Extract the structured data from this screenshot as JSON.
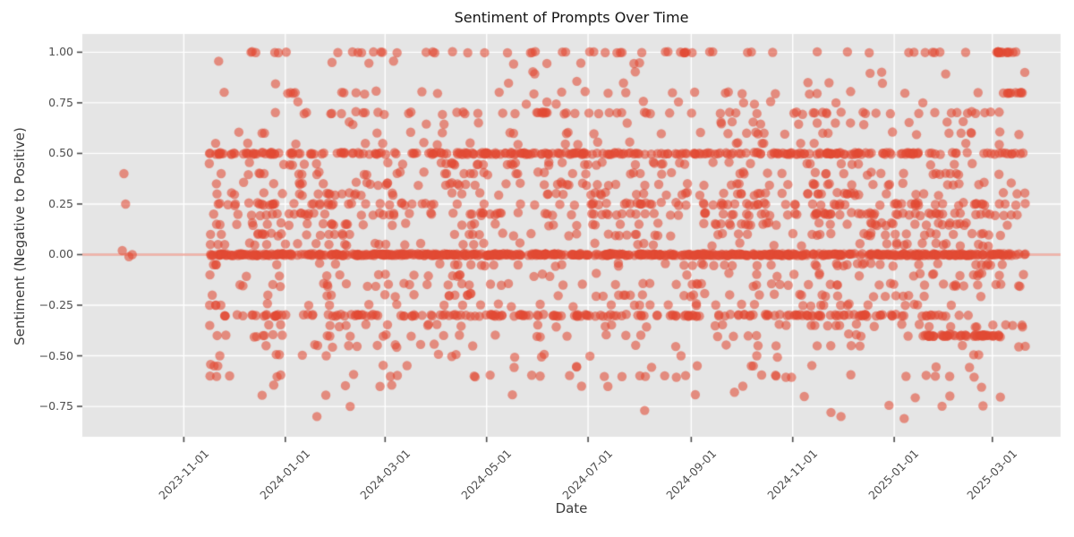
{
  "colors": {
    "figure_bg": "#ffffff",
    "plot_bg": "#e5e5e5",
    "grid": "#ffffff",
    "point": "#e24a33",
    "tick_mark": "#4a4a4a",
    "tick_label": "#4f4f4f",
    "title_color": "#141414"
  },
  "chart_data": {
    "type": "scatter",
    "title": "Sentiment of Prompts Over Time",
    "xlabel": "Date",
    "ylabel": "Sentiment (Negative to Positive)",
    "grid": true,
    "ylim": [
      -0.9,
      1.09
    ],
    "xlim_days": [
      -61,
      527
    ],
    "day_zero_date": "2023-11-01",
    "x_ticks": [
      {
        "label": "2023-11-01",
        "day": 0
      },
      {
        "label": "2024-01-01",
        "day": 61
      },
      {
        "label": "2024-03-01",
        "day": 121
      },
      {
        "label": "2024-05-01",
        "day": 182
      },
      {
        "label": "2024-07-01",
        "day": 243
      },
      {
        "label": "2024-09-01",
        "day": 305
      },
      {
        "label": "2024-11-01",
        "day": 366
      },
      {
        "label": "2025-01-01",
        "day": 427
      },
      {
        "label": "2025-03-01",
        "day": 486
      }
    ],
    "y_ticks": [
      {
        "label": "1.00",
        "value": 1.0
      },
      {
        "label": "0.75",
        "value": 0.75
      },
      {
        "label": "0.50",
        "value": 0.5
      },
      {
        "label": "0.25",
        "value": 0.25
      },
      {
        "label": "0.00",
        "value": 0.0
      },
      {
        "label": "−0.25",
        "value": -0.25
      },
      {
        "label": "−0.50",
        "value": -0.5
      },
      {
        "label": "−0.75",
        "value": -0.75
      }
    ],
    "point_alpha": 0.58,
    "point_radius": 5.2,
    "zero_line": {
      "value": 0,
      "alpha": 0.42,
      "width": 2.5
    },
    "seed": 1337,
    "notable_points": [
      [
        -36,
        0.4
      ],
      [
        -35,
        0.25
      ],
      [
        -37,
        0.02
      ],
      [
        -31,
        0.0
      ],
      [
        -33,
        -0.01
      ],
      [
        80,
        -0.8
      ],
      [
        100,
        -0.75
      ],
      [
        277,
        -0.77
      ],
      [
        331,
        -0.68
      ],
      [
        336,
        -0.65
      ],
      [
        389,
        -0.78
      ],
      [
        395,
        -0.8
      ],
      [
        433,
        -0.81
      ]
    ],
    "runs": [
      {
        "value": 0.0,
        "from": 15,
        "to": 506,
        "count": 650,
        "jitter": 0.005
      },
      {
        "value": 0.5,
        "from": 15,
        "to": 115,
        "count": 55,
        "jitter": 0.005
      },
      {
        "value": 0.5,
        "from": 115,
        "to": 506,
        "count": 235,
        "jitter": 0.005
      },
      {
        "value": -0.3,
        "from": 18,
        "to": 465,
        "count": 190,
        "jitter": 0.005
      },
      {
        "value": -0.4,
        "from": 443,
        "to": 490,
        "count": 48,
        "jitter": 0.004
      },
      {
        "value": 1.0,
        "from": 17,
        "to": 504,
        "count": 58,
        "jitter": 0.003
      },
      {
        "value": 1.0,
        "from": 488,
        "to": 503,
        "count": 13,
        "jitter": 0.003
      },
      {
        "value": 0.8,
        "from": 20,
        "to": 485,
        "count": 15,
        "jitter": 0.004
      },
      {
        "value": 0.8,
        "from": 489,
        "to": 504,
        "count": 10,
        "jitter": 0.003
      },
      {
        "value": 0.7,
        "from": 45,
        "to": 492,
        "count": 45,
        "jitter": 0.005
      },
      {
        "value": 0.25,
        "from": 20,
        "to": 500,
        "count": 45,
        "jitter": 0.006
      },
      {
        "value": 0.2,
        "from": 20,
        "to": 500,
        "count": 40,
        "jitter": 0.006
      },
      {
        "value": -0.6,
        "from": 18,
        "to": 472,
        "count": 16,
        "jitter": 0.004
      }
    ],
    "columns": [
      {
        "day": 19,
        "spread": 4,
        "count": 28,
        "vmin": -0.62,
        "vmax": 0.55
      },
      {
        "day": 50,
        "spread": 6,
        "count": 22,
        "vmin": -0.45,
        "vmax": 0.72
      },
      {
        "day": 95,
        "spread": 8,
        "count": 18,
        "vmin": -0.5,
        "vmax": 0.35
      },
      {
        "day": 165,
        "spread": 10,
        "count": 30,
        "vmin": -0.35,
        "vmax": 0.55
      },
      {
        "day": 268,
        "spread": 8,
        "count": 18,
        "vmin": -0.35,
        "vmax": 0.75
      },
      {
        "day": 340,
        "spread": 9,
        "count": 26,
        "vmin": -0.7,
        "vmax": 0.85
      },
      {
        "day": 388,
        "spread": 11,
        "count": 40,
        "vmin": -0.5,
        "vmax": 0.75
      },
      {
        "day": 470,
        "spread": 11,
        "count": 22,
        "vmin": -0.45,
        "vmax": 0.75
      }
    ],
    "background_scatter": {
      "count": 880,
      "from": 15,
      "to": 506,
      "time_power": 0.82,
      "jitter": 0.008,
      "levels": [
        0.95,
        0.9,
        0.85,
        0.8,
        0.75,
        0.7,
        0.65,
        0.6,
        0.55,
        0.45,
        0.4,
        0.35,
        0.3,
        0.25,
        0.2,
        0.15,
        0.1,
        0.05,
        -0.05,
        -0.1,
        -0.15,
        -0.2,
        -0.25,
        -0.35,
        -0.4,
        -0.45,
        -0.5,
        -0.55,
        -0.6,
        -0.65,
        -0.7,
        -0.75
      ],
      "weights": [
        1,
        2,
        2,
        3,
        2,
        4,
        4,
        4,
        4,
        7,
        8,
        10,
        12,
        13,
        12,
        10,
        9,
        8,
        8,
        8,
        8,
        7,
        6,
        7,
        6,
        5,
        4,
        3,
        3,
        2,
        2,
        1
      ]
    }
  }
}
